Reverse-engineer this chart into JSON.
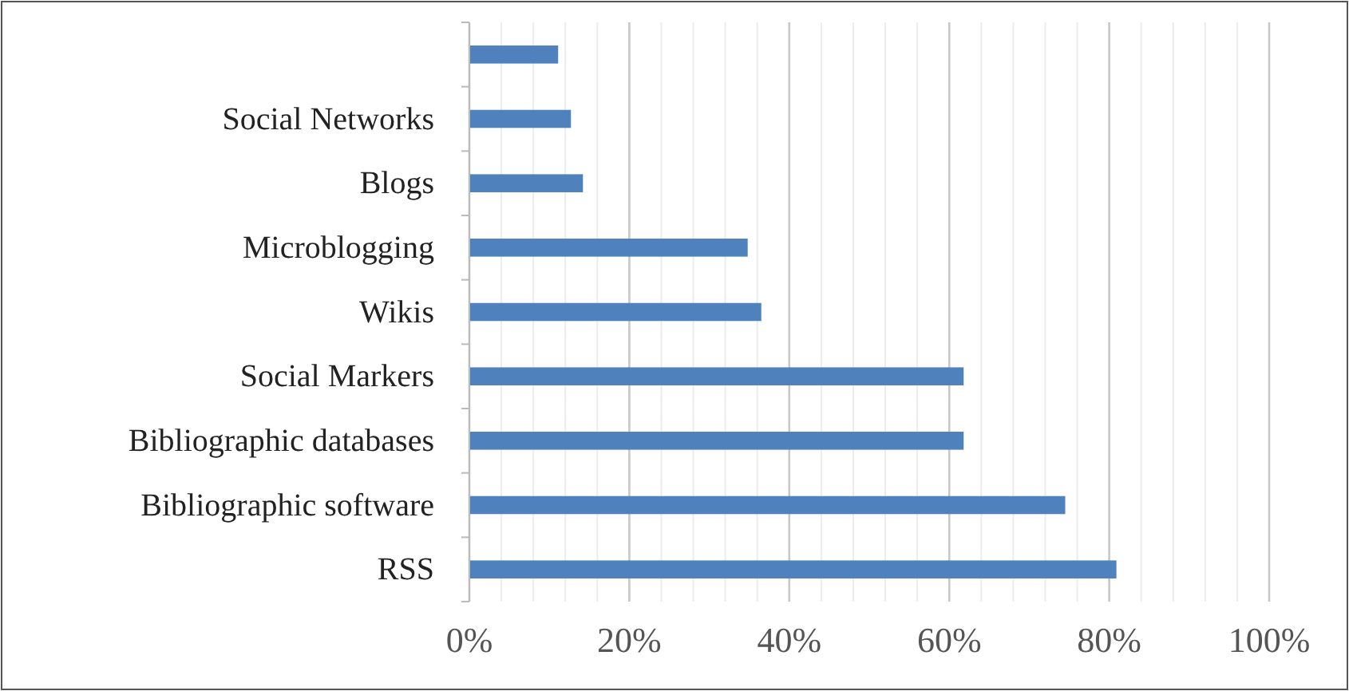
{
  "chart_data": {
    "type": "bar",
    "orientation": "horizontal",
    "categories": [
      null,
      "Social Networks",
      "Blogs",
      "Microblogging",
      "Wikis",
      "Social Markers",
      "Bibliographic databases",
      "Bibliographic software",
      "RSS"
    ],
    "values": [
      11.1,
      12.7,
      14.2,
      34.8,
      36.5,
      61.8,
      61.8,
      74.5,
      80.9
    ],
    "color": "#4f81bd",
    "xlim": [
      0,
      100
    ],
    "xticks": [
      {
        "value": 0,
        "label": "0%"
      },
      {
        "value": 4,
        "label": null
      },
      {
        "value": 8,
        "label": null
      },
      {
        "value": 12,
        "label": null
      },
      {
        "value": 16,
        "label": null
      },
      {
        "value": 20,
        "label": "20%"
      },
      {
        "value": 24,
        "label": null
      },
      {
        "value": 28,
        "label": null
      },
      {
        "value": 32,
        "label": null
      },
      {
        "value": 36,
        "label": null
      },
      {
        "value": 40,
        "label": "40%"
      },
      {
        "value": 44,
        "label": null
      },
      {
        "value": 48,
        "label": null
      },
      {
        "value": 52,
        "label": null
      },
      {
        "value": 56,
        "label": null
      },
      {
        "value": 60,
        "label": "60%"
      },
      {
        "value": 64,
        "label": null
      },
      {
        "value": 68,
        "label": null
      },
      {
        "value": 72,
        "label": null
      },
      {
        "value": 76,
        "label": null
      },
      {
        "value": 80,
        "label": "80%"
      },
      {
        "value": 84,
        "label": null
      },
      {
        "value": 88,
        "label": null
      },
      {
        "value": 92,
        "label": null
      },
      {
        "value": 96,
        "label": null
      },
      {
        "value": 100,
        "label": "100%"
      }
    ],
    "grid": "x"
  }
}
